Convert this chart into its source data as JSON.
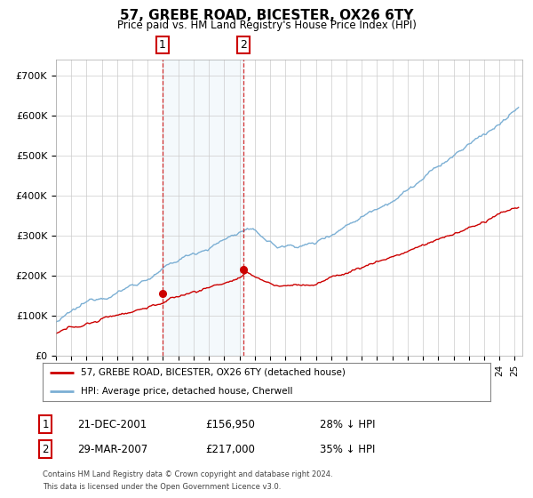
{
  "title": "57, GREBE ROAD, BICESTER, OX26 6TY",
  "subtitle": "Price paid vs. HM Land Registry's House Price Index (HPI)",
  "hpi_color": "#7bafd4",
  "price_color": "#cc0000",
  "vline_color": "#cc0000",
  "ylabel_ticks": [
    "£0",
    "£100K",
    "£200K",
    "£300K",
    "£400K",
    "£500K",
    "£600K",
    "£700K"
  ],
  "ytick_values": [
    0,
    100000,
    200000,
    300000,
    400000,
    500000,
    600000,
    700000
  ],
  "ylim": [
    0,
    740000
  ],
  "xlim_start": 1995.0,
  "xlim_end": 2025.5,
  "transaction1_x": 2001.97,
  "transaction1_y": 156950,
  "transaction2_x": 2007.24,
  "transaction2_y": 217000,
  "legend_address": "57, GREBE ROAD, BICESTER, OX26 6TY (detached house)",
  "legend_hpi": "HPI: Average price, detached house, Cherwell",
  "table_row1_num": "1",
  "table_row1_date": "21-DEC-2001",
  "table_row1_price": "£156,950",
  "table_row1_hpi": "28% ↓ HPI",
  "table_row2_num": "2",
  "table_row2_date": "29-MAR-2007",
  "table_row2_price": "£217,000",
  "table_row2_hpi": "35% ↓ HPI",
  "footnote1": "Contains HM Land Registry data © Crown copyright and database right 2024.",
  "footnote2": "This data is licensed under the Open Government Licence v3.0."
}
